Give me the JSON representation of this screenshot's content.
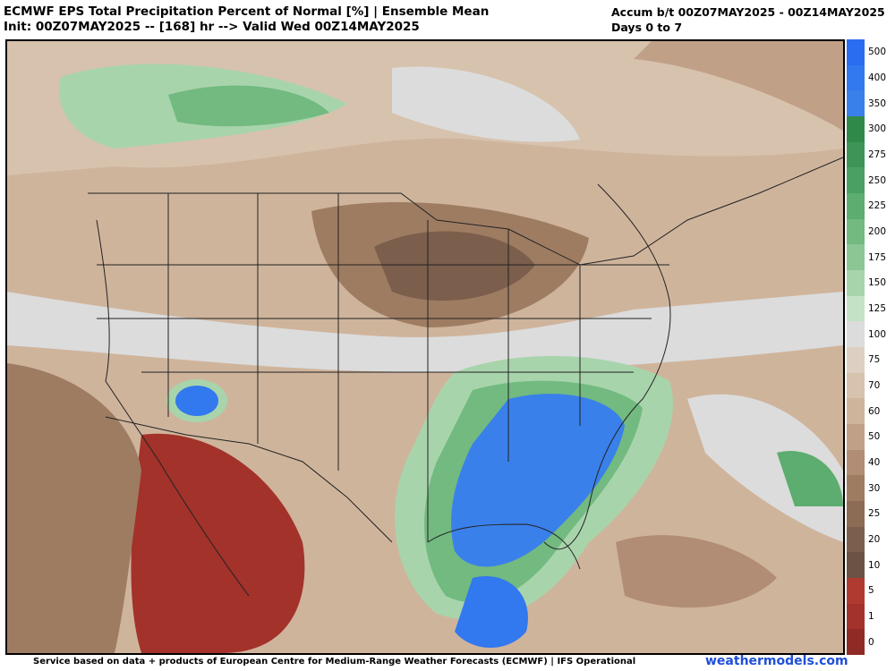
{
  "header": {
    "title_line1": "ECMWF EPS Total Precipitation Percent of Normal [%] | Ensemble Mean",
    "title_line2": "Init: 00Z07MAY2025 -- [168] hr --> Valid Wed 00Z14MAY2025",
    "accum_line1": "Accum b/t 00Z07MAY2025 - 00Z14MAY2025",
    "accum_line2": "Days 0 to 7"
  },
  "colorbar": {
    "levels": [
      "500",
      "400",
      "350",
      "300",
      "275",
      "250",
      "225",
      "200",
      "175",
      "150",
      "125",
      "100",
      "75",
      "70",
      "60",
      "50",
      "40",
      "30",
      "25",
      "20",
      "10",
      "5",
      "1",
      "0"
    ],
    "colors": [
      "#2a6df0",
      "#3278ee",
      "#3a80ea",
      "#2f8a4a",
      "#3d9456",
      "#4aa062",
      "#5cad6f",
      "#72ba80",
      "#8cc695",
      "#a8d4ac",
      "#c4e3c6",
      "#dcdcdc",
      "#ddd0c2",
      "#d7c2ae",
      "#cfb49c",
      "#c1a088",
      "#b08d74",
      "#9e7c62",
      "#8c6c55",
      "#7b5e4b",
      "#6b5244",
      "#b03a30",
      "#a3322a",
      "#8f2a24"
    ]
  },
  "footer": {
    "credit": "Service based on data + products of European Centre for Medium-Range Weather Forecasts (ECMWF) | IFS Operational",
    "site": "weathermodels.com"
  }
}
